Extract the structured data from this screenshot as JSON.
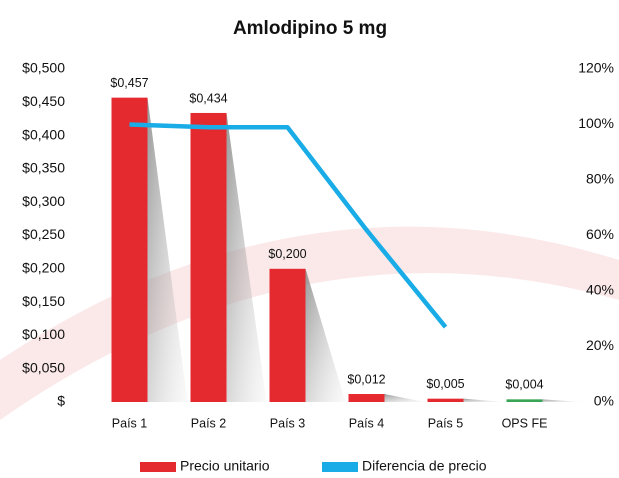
{
  "chart_data": {
    "type": "bar-line",
    "title": "Amlodipino 5 mg",
    "categories": [
      "País 1",
      "País 2",
      "País 3",
      "País 4",
      "País 5",
      "OPS FE"
    ],
    "series": [
      {
        "name": "Precio unitario",
        "color": "#e52a2f",
        "colors": [
          "#e52a2f",
          "#e52a2f",
          "#e52a2f",
          "#e52a2f",
          "#e52a2f",
          "#3aa655"
        ],
        "values": [
          0.457,
          0.434,
          0.2,
          0.012,
          0.005,
          0.004
        ],
        "value_labels": [
          "$0,457",
          "$0,434",
          "$0,200",
          "$0,012",
          "$0,005",
          "$0,004"
        ]
      },
      {
        "name": "Diferencia de precio",
        "color": "#19ace6",
        "axis": "y2",
        "values": [
          100,
          99,
          99,
          62,
          27,
          null
        ]
      }
    ],
    "ylim": [
      0,
      0.5
    ],
    "yticks": [
      {
        "value": 0,
        "label": "$"
      },
      {
        "value": 0.05,
        "label": "$0,050"
      },
      {
        "value": 0.1,
        "label": "$0,100"
      },
      {
        "value": 0.15,
        "label": "$0,150"
      },
      {
        "value": 0.2,
        "label": "$0,200"
      },
      {
        "value": 0.25,
        "label": "$0,250"
      },
      {
        "value": 0.3,
        "label": "$0,300"
      },
      {
        "value": 0.35,
        "label": "$0,350"
      },
      {
        "value": 0.4,
        "label": "$0,400"
      },
      {
        "value": 0.45,
        "label": "$0,450"
      },
      {
        "value": 0.5,
        "label": "$0,500"
      }
    ],
    "y2lim": [
      0,
      120
    ],
    "y2ticks": [
      {
        "value": 0,
        "label": "0%"
      },
      {
        "value": 20,
        "label": "20%"
      },
      {
        "value": 40,
        "label": "40%"
      },
      {
        "value": 60,
        "label": "60%"
      },
      {
        "value": 80,
        "label": "80%"
      },
      {
        "value": 100,
        "label": "100%"
      },
      {
        "value": 120,
        "label": "120%"
      }
    ],
    "legend": "bottom"
  }
}
